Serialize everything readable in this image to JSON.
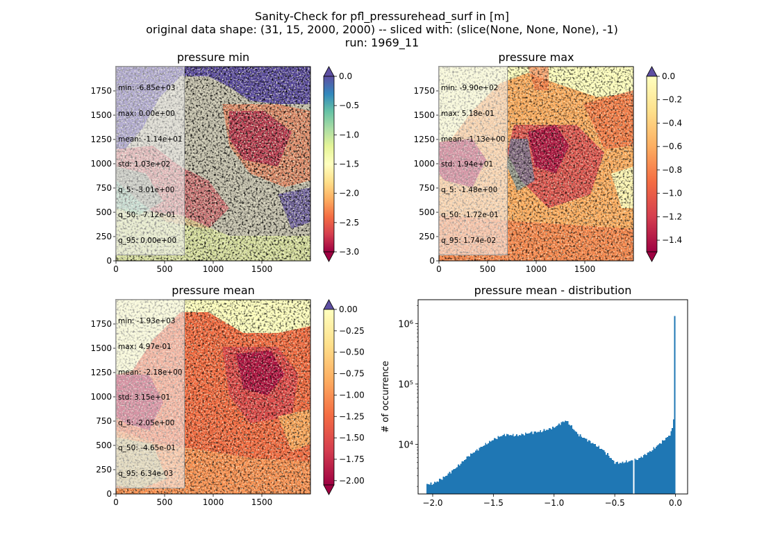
{
  "suptitle": {
    "line1": "Sanity-Check for pfl_pressurehead_surf in [m]",
    "line2": "original data shape: (31, 15, 2000, 2000) -- sliced with: (slice(None, None, None), -1)",
    "line3": "run: 1969_11"
  },
  "colors": {
    "histogram_bar": "#1f77b4",
    "colormap": "Spectral",
    "colormap_stops": [
      "#9e0142",
      "#d53e4f",
      "#f46d43",
      "#fdae61",
      "#fee08b",
      "#ffffbf",
      "#e6f598",
      "#abdda4",
      "#66c2a5",
      "#3288bd",
      "#5e4fa2"
    ]
  },
  "chart_data": [
    {
      "type": "heatmap",
      "title": "pressure min",
      "xticks": [
        "0",
        "500",
        "1000",
        "1500"
      ],
      "yticks": [
        "0",
        "250",
        "500",
        "750",
        "1000",
        "1250",
        "1500",
        "1750"
      ],
      "xlim": [
        0,
        2000
      ],
      "ylim": [
        0,
        2000
      ],
      "colormap": "Spectral",
      "clim": [
        -3.0,
        0.0
      ],
      "colorbar_ticks": [
        "0.0",
        "−0.5",
        "−1.0",
        "−1.5",
        "−2.0",
        "−2.5",
        "−3.0"
      ],
      "colorbar_extend": "both",
      "stats": [
        "min: -6.85e+03",
        "max: 0.00e+00",
        "mean: -1.14e+01",
        "std: 1.03e+02",
        "q_5: -3.01e+00",
        "q_50: -7.12e-01",
        "q_95: 0.00e+00"
      ]
    },
    {
      "type": "heatmap",
      "title": "pressure max",
      "xticks": [
        "0",
        "500",
        "1000",
        "1500"
      ],
      "yticks": [
        "0",
        "250",
        "500",
        "750",
        "1000",
        "1250",
        "1500",
        "1750"
      ],
      "xlim": [
        0,
        2000
      ],
      "ylim": [
        0,
        2000
      ],
      "colormap": "Spectral",
      "clim": [
        -1.5,
        0.0
      ],
      "colorbar_ticks": [
        "0.0",
        "−0.2",
        "−0.4",
        "−0.6",
        "−0.8",
        "−1.0",
        "−1.2",
        "−1.4"
      ],
      "colorbar_extend": "both",
      "stats": [
        "min: -9.90e+02",
        "max: 5.18e-01",
        "mean: -1.13e+00",
        "std: 1.94e+01",
        "q_5: -1.48e+00",
        "q_50: -1.72e-01",
        "q_95: 1.74e-02"
      ]
    },
    {
      "type": "heatmap",
      "title": "pressure mean",
      "xticks": [
        "0",
        "500",
        "1000",
        "1500"
      ],
      "yticks": [
        "0",
        "250",
        "500",
        "750",
        "1000",
        "1250",
        "1500",
        "1750"
      ],
      "xlim": [
        0,
        2000
      ],
      "ylim": [
        0,
        2000
      ],
      "colormap": "Spectral",
      "clim": [
        -2.05,
        0.0
      ],
      "colorbar_ticks": [
        "0.00",
        "−0.25",
        "−0.50",
        "−0.75",
        "−1.00",
        "−1.25",
        "−1.50",
        "−1.75",
        "−2.00"
      ],
      "colorbar_extend": "both",
      "stats": [
        "min: -1.93e+03",
        "max: 4.97e-01",
        "mean: -2.18e+00",
        "std: 3.15e+01",
        "q_5: -2.05e+00",
        "q_50: -4.65e-01",
        "q_95: 6.34e-03"
      ]
    },
    {
      "type": "bar",
      "title": "pressure mean - distribution",
      "ylabel": "# of occurrence",
      "xlabel": "",
      "yscale": "log",
      "xlim": [
        -2.12,
        0.1
      ],
      "ylim": [
        1500,
        2500000
      ],
      "xticks": [
        "−2.0",
        "−1.5",
        "−1.0",
        "−0.5",
        "0.0"
      ],
      "xtick_values": [
        -2.0,
        -1.5,
        -1.0,
        -0.5,
        0.0
      ],
      "yticks": [
        "10⁴",
        "10⁵",
        "10⁶"
      ],
      "ytick_values": [
        10000,
        100000,
        1000000
      ],
      "bin_range": [
        -2.05,
        0.0
      ],
      "bin_count": 200,
      "profile_x": [
        -2.05,
        -2.0,
        -1.95,
        -1.9,
        -1.8,
        -1.7,
        -1.6,
        -1.5,
        -1.45,
        -1.4,
        -1.3,
        -1.2,
        -1.1,
        -1.0,
        -0.95,
        -0.9,
        -0.85,
        -0.8,
        -0.7,
        -0.6,
        -0.55,
        -0.5,
        -0.45,
        -0.35,
        -0.3,
        -0.2,
        -0.1,
        -0.05,
        -0.02,
        -0.01,
        0.0
      ],
      "profile_y": [
        2200,
        2200,
        2500,
        2900,
        4200,
        6500,
        9000,
        12000,
        13500,
        14500,
        14000,
        15500,
        16500,
        19000,
        22000,
        25000,
        19000,
        14500,
        11000,
        8200,
        6500,
        5000,
        4900,
        5400,
        5800,
        7800,
        11500,
        14000,
        19000,
        42000,
        1350000
      ],
      "gaps_at": [
        -0.35,
        -0.34
      ]
    }
  ]
}
